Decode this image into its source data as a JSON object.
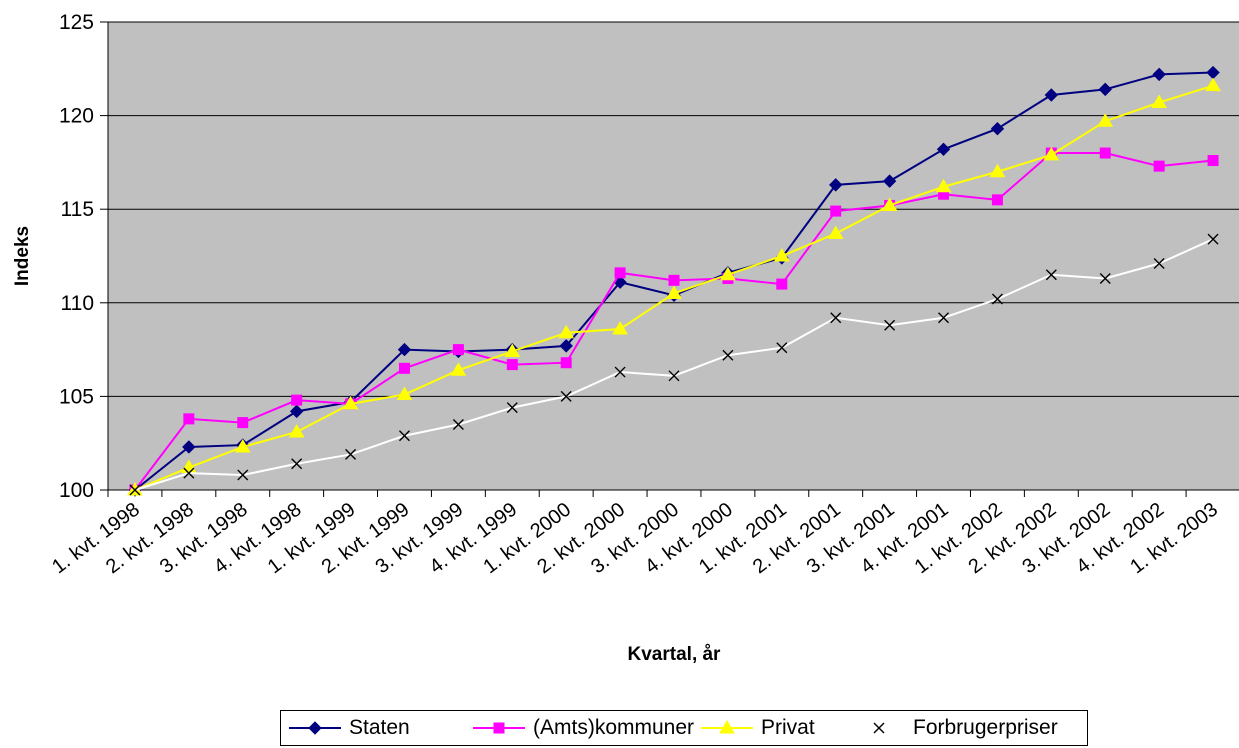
{
  "chart_data": {
    "type": "line",
    "xlabel": "Kvartal, år",
    "ylabel": "Indeks",
    "ylim": [
      100,
      125
    ],
    "yticks": [
      "100",
      "105",
      "110",
      "115",
      "120",
      "125"
    ],
    "categories": [
      "1. kvt. 1998",
      "2. kvt. 1998",
      "3. kvt. 1998",
      "4. kvt. 1998",
      "1. kvt. 1999",
      "2. kvt. 1999",
      "3. kvt. 1999",
      "4. kvt. 1999",
      "1. kvt. 2000",
      "2. kvt. 2000",
      "3. kvt. 2000",
      "4. kvt. 2000",
      "1. kvt. 2001",
      "2. kvt. 2001",
      "3. kvt. 2001",
      "4. kvt. 2001",
      "1. kvt. 2002",
      "2. kvt. 2002",
      "3. kvt. 2002",
      "4. kvt. 2002",
      "1. kvt. 2003"
    ],
    "series": [
      {
        "name": "Staten",
        "color": "#000080",
        "marker": "diamond",
        "values": [
          100,
          102.3,
          102.4,
          104.2,
          104.7,
          107.5,
          107.4,
          107.5,
          107.7,
          111.1,
          110.4,
          111.6,
          112.4,
          116.3,
          116.5,
          118.2,
          119.3,
          121.1,
          121.4,
          122.2,
          122.3
        ]
      },
      {
        "name": "(Amts)kommuner",
        "color": "#ff00ff",
        "marker": "square",
        "values": [
          100,
          103.8,
          103.6,
          104.8,
          104.6,
          106.5,
          107.5,
          106.7,
          106.8,
          111.6,
          111.2,
          111.3,
          111.0,
          114.9,
          115.2,
          115.8,
          115.5,
          118.0,
          118.0,
          117.3,
          117.6
        ]
      },
      {
        "name": "Privat",
        "color": "#ffff00",
        "marker": "triangle",
        "values": [
          100,
          101.2,
          102.3,
          103.1,
          104.6,
          105.1,
          106.4,
          107.4,
          108.4,
          108.6,
          110.5,
          111.5,
          112.5,
          113.7,
          115.2,
          116.2,
          117.0,
          117.9,
          119.7,
          120.7,
          121.6
        ]
      },
      {
        "name": "Forbrugerpriser",
        "color": "#ffffff",
        "marker": "x",
        "values": [
          100,
          100.9,
          100.8,
          101.4,
          101.9,
          102.9,
          103.5,
          104.4,
          105.0,
          106.3,
          106.1,
          107.2,
          107.6,
          109.2,
          108.8,
          109.2,
          110.2,
          111.5,
          111.3,
          112.1,
          113.4
        ]
      }
    ],
    "grid": true,
    "legend": "bottom"
  },
  "colors": {
    "plot_background": "#c0c0c0",
    "gridline": "#000000"
  }
}
